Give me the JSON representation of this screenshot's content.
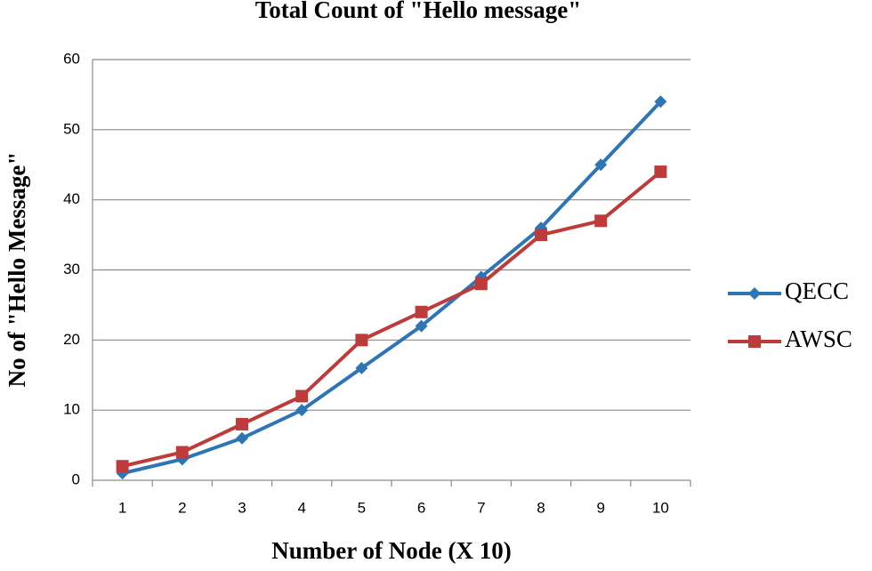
{
  "chart_data": {
    "type": "line",
    "title": "Total Count of \"Hello message\"",
    "x_label": "Number of Node (X 10)",
    "y_label": "No of  \"Hello Message\"",
    "categories": [
      "1",
      "2",
      "3",
      "4",
      "5",
      "6",
      "7",
      "8",
      "9",
      "10"
    ],
    "series": [
      {
        "name": "QECC",
        "color": "#2e75b6",
        "marker": "diamond",
        "values": [
          1,
          3,
          6,
          10,
          16,
          22,
          29,
          36,
          45,
          54
        ]
      },
      {
        "name": "AWSC",
        "color": "#be3b3b",
        "marker": "square",
        "values": [
          2,
          4,
          8,
          12,
          20,
          24,
          28,
          35,
          37,
          44
        ]
      }
    ],
    "ylim": [
      0,
      60
    ],
    "yticks": [
      0,
      10,
      20,
      30,
      40,
      50,
      60
    ],
    "grid": true,
    "legend": "right"
  }
}
